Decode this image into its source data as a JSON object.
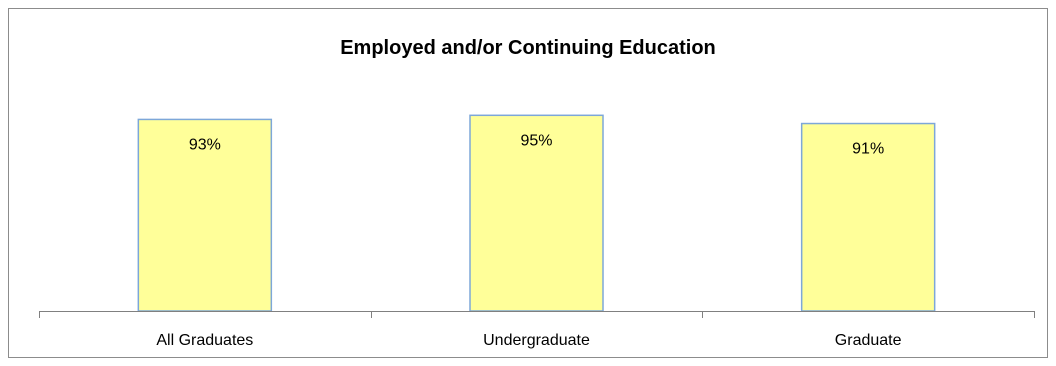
{
  "chart_data": {
    "type": "bar",
    "title": "Employed and/or Continuing Education",
    "categories": [
      "All Graduates",
      "Undergraduate",
      "Graduate"
    ],
    "values": [
      93,
      95,
      91
    ],
    "data_labels": [
      "93%",
      "95%",
      "91%"
    ],
    "ylim": [
      0,
      100
    ],
    "grid": false,
    "legend": "none",
    "colors": {
      "bar_fill": "#ffff99",
      "bar_stroke": "#7da7d9",
      "axis": "#808080"
    }
  }
}
